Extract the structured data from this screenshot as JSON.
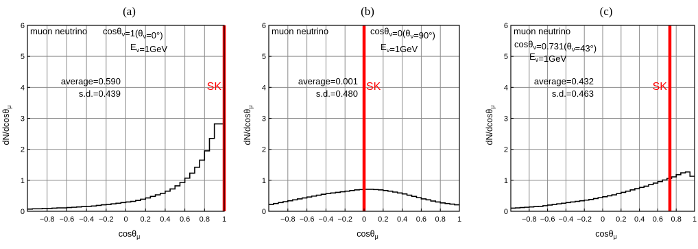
{
  "chart_data": [
    {
      "type": "histogram",
      "panel_label": "(a)",
      "xlabel": "cosθμ",
      "ylabel": "dN/dcosθμ",
      "xlim": [
        -1,
        1
      ],
      "ylim": [
        0,
        6
      ],
      "x_ticks": [
        "−0.8",
        "−0.6",
        "−0.4",
        "−0.2",
        "0",
        "0.2",
        "0.4",
        "0.6",
        "0.8",
        "1"
      ],
      "y_ticks": [
        "0",
        "1",
        "2",
        "3",
        "4",
        "5",
        "6"
      ],
      "grid": true,
      "bin_edges_start": -1,
      "bin_width": 0.05,
      "values": [
        0.07,
        0.08,
        0.08,
        0.09,
        0.09,
        0.1,
        0.11,
        0.11,
        0.12,
        0.13,
        0.14,
        0.15,
        0.16,
        0.17,
        0.19,
        0.21,
        0.22,
        0.24,
        0.26,
        0.28,
        0.3,
        0.32,
        0.35,
        0.39,
        0.43,
        0.48,
        0.53,
        0.58,
        0.65,
        0.72,
        0.82,
        0.93,
        1.07,
        1.23,
        1.42,
        1.65,
        1.95,
        2.35,
        2.82,
        2.82
      ],
      "marker": {
        "label": "SK",
        "x": 1.0,
        "color": "#ff0000"
      },
      "annotations": {
        "line1": "muon neutrino",
        "line2": "cosθν=1(θν=0°)",
        "line3": "Eν=1GeV",
        "average": "average=0.590",
        "sd": "s.d.=0.439"
      }
    },
    {
      "type": "histogram",
      "panel_label": "(b)",
      "xlabel": "cosθμ",
      "ylabel": "dN/dcosθμ",
      "xlim": [
        -1,
        1
      ],
      "ylim": [
        0,
        6
      ],
      "x_ticks": [
        "−0.8",
        "−0.6",
        "−0.4",
        "−0.2",
        "0",
        "0.2",
        "0.4",
        "0.6",
        "0.8",
        "1"
      ],
      "y_ticks": [
        "0",
        "1",
        "2",
        "3",
        "4",
        "5",
        "6"
      ],
      "grid": true,
      "bin_edges_start": -1,
      "bin_width": 0.05,
      "values": [
        0.22,
        0.25,
        0.28,
        0.31,
        0.34,
        0.37,
        0.4,
        0.43,
        0.46,
        0.49,
        0.52,
        0.55,
        0.57,
        0.59,
        0.61,
        0.63,
        0.65,
        0.67,
        0.69,
        0.7,
        0.71,
        0.71,
        0.7,
        0.69,
        0.67,
        0.65,
        0.62,
        0.59,
        0.56,
        0.52,
        0.48,
        0.44,
        0.4,
        0.37,
        0.33,
        0.3,
        0.27,
        0.25,
        0.23,
        0.21
      ],
      "marker": {
        "label": "SK",
        "x": 0.0,
        "color": "#ff0000"
      },
      "annotations": {
        "line1": "muon neutrino",
        "line2": "cosθν=0(θν=90°)",
        "line3": "Eν=1GeV",
        "average": "average=0.001",
        "sd": "s.d.=0.480"
      }
    },
    {
      "type": "histogram",
      "panel_label": "(c)",
      "xlabel": "cosθμ",
      "ylabel": "dN/dcosθμ",
      "xlim": [
        -1,
        1
      ],
      "ylim": [
        0,
        6
      ],
      "x_ticks": [
        "−0.8",
        "−0.6",
        "−0.4",
        "−0.2",
        "0",
        "0.2",
        "0.4",
        "0.6",
        "0.8",
        "1"
      ],
      "y_ticks": [
        "0",
        "1",
        "2",
        "3",
        "4",
        "5",
        "6"
      ],
      "grid": true,
      "bin_edges_start": -1,
      "bin_width": 0.05,
      "values": [
        0.1,
        0.11,
        0.12,
        0.13,
        0.14,
        0.15,
        0.16,
        0.18,
        0.2,
        0.22,
        0.24,
        0.26,
        0.28,
        0.3,
        0.32,
        0.34,
        0.36,
        0.38,
        0.41,
        0.44,
        0.47,
        0.5,
        0.53,
        0.57,
        0.61,
        0.65,
        0.69,
        0.73,
        0.77,
        0.81,
        0.86,
        0.91,
        0.96,
        1.01,
        1.06,
        1.11,
        1.18,
        1.24,
        1.27,
        1.13
      ],
      "marker": {
        "label": "SK",
        "x": 0.731,
        "color": "#ff0000"
      },
      "annotations": {
        "line1": "muon neutrino",
        "line2": "cosθν=0.731(θν=43°)",
        "line3": "Eν=1GeV",
        "average": "average=0.432",
        "sd": "s.d.=0.463"
      }
    }
  ]
}
